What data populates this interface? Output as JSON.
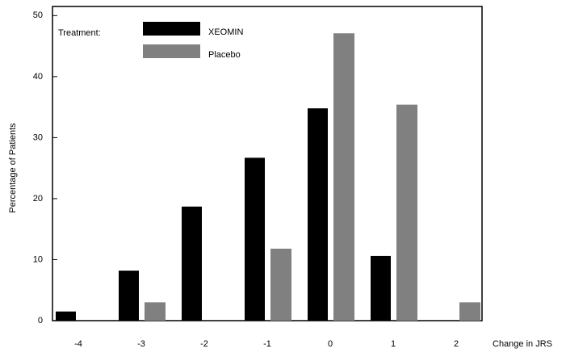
{
  "chart_data": {
    "type": "bar",
    "x_label": "Change in JRS",
    "y_label": "Percentage of Patients",
    "legend_title": "Treatment:",
    "x": [
      -4,
      -3,
      -2,
      -1,
      0,
      1,
      2
    ],
    "xlim": [
      -4.41,
      2.41
    ],
    "series": [
      {
        "name": "XEOMIN",
        "color": "#000000",
        "values": [
          1.5,
          8.2,
          18.7,
          26.7,
          34.8,
          10.6,
          0
        ]
      },
      {
        "name": "Placebo",
        "color": "#808080",
        "values": [
          0,
          3.0,
          0,
          11.8,
          47.1,
          35.4,
          3.0
        ]
      }
    ],
    "ylim": [
      0,
      51.5
    ],
    "yticks": [
      0,
      10,
      20,
      30,
      40,
      50
    ],
    "grid": false
  }
}
